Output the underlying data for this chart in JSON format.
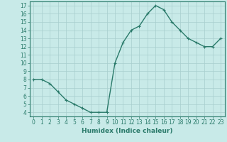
{
  "x": [
    0,
    1,
    2,
    3,
    4,
    5,
    6,
    7,
    8,
    9,
    10,
    11,
    12,
    13,
    14,
    15,
    16,
    17,
    18,
    19,
    20,
    21,
    22,
    23
  ],
  "y": [
    8,
    8,
    7.5,
    6.5,
    5.5,
    5,
    4.5,
    4,
    4,
    4,
    10,
    12.5,
    14,
    14.5,
    16,
    17,
    16.5,
    15,
    14,
    13,
    12.5,
    12,
    12,
    13
  ],
  "line_color": "#2a7a6a",
  "marker": "+",
  "bg_color": "#c8eae8",
  "grid_color": "#a8cece",
  "xlabel": "Humidex (Indice chaleur)",
  "ylabel": "",
  "xlim": [
    -0.5,
    23.5
  ],
  "ylim": [
    3.5,
    17.5
  ],
  "yticks": [
    4,
    5,
    6,
    7,
    8,
    9,
    10,
    11,
    12,
    13,
    14,
    15,
    16,
    17
  ],
  "xticks": [
    0,
    1,
    2,
    3,
    4,
    5,
    6,
    7,
    8,
    9,
    10,
    11,
    12,
    13,
    14,
    15,
    16,
    17,
    18,
    19,
    20,
    21,
    22,
    23
  ],
  "tick_color": "#2a7a6a",
  "xlabel_color": "#2a7a6a",
  "tick_label_color": "#2a7a6a",
  "axis_color": "#2a7a6a",
  "tick_fontsize": 5.5,
  "xlabel_fontsize": 6.5,
  "linewidth": 1.0,
  "markersize": 3.5,
  "markeredgewidth": 0.8
}
